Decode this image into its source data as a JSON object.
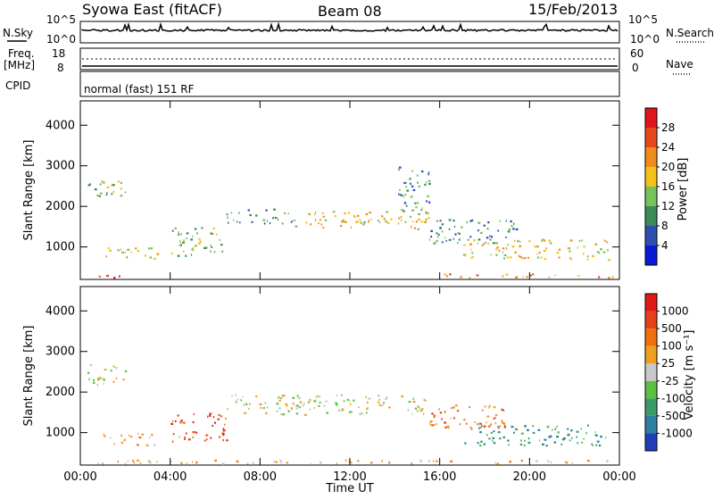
{
  "header": {
    "station": "Syowa East (fitACF)",
    "beam": "Beam 08",
    "date": "15/Feb/2013"
  },
  "top_panels": {
    "nsky_label": "N.Sky",
    "nsky_ticks": [
      "10^5",
      "10^0"
    ],
    "nsearch_label": "N.Search",
    "nsearch_ticks": [
      "10^5",
      "10^0"
    ],
    "freq_label_1": "Freq.",
    "freq_label_2": "[MHz]",
    "freq_ticks": [
      "18",
      "8"
    ],
    "nave_label": "Nave",
    "nave_ticks": [
      "60",
      "0"
    ],
    "cpid_label": "CPID",
    "cpid_text": "normal (fast) 151 RF"
  },
  "chart_data": [
    {
      "type": "heatmap",
      "ylabel": "Slant Range [km]",
      "xlabel": "",
      "y_ticks": [
        1000,
        2000,
        3000,
        4000
      ],
      "ylim": [
        200,
        4600
      ],
      "x_ticks": [
        0,
        4,
        8,
        12,
        16,
        20,
        24
      ],
      "xlim": [
        0,
        24
      ],
      "colorbar": {
        "label": "Power [dB]",
        "ticks": [
          "4",
          "8",
          "12",
          "16",
          "20",
          "24",
          "28"
        ],
        "colors": [
          "#0a1bd8",
          "#2f4fb0",
          "#3a8a5a",
          "#78c25a",
          "#f2c21a",
          "#f08c1a",
          "#e8471a",
          "#e0151a"
        ]
      },
      "regions": [
        {
          "t0": 0.2,
          "t1": 1.8,
          "r0": 250,
          "r1": 350,
          "level": 7
        },
        {
          "t0": 1.0,
          "t1": 3.5,
          "r0": 700,
          "r1": 1000,
          "level": 4
        },
        {
          "t0": 0.3,
          "t1": 2.0,
          "r0": 2200,
          "r1": 2700,
          "level": 3
        },
        {
          "t0": 4.0,
          "t1": 6.5,
          "r0": 800,
          "r1": 1500,
          "level": 3
        },
        {
          "t0": 6.5,
          "t1": 9.5,
          "r0": 1600,
          "r1": 1950,
          "level": 2
        },
        {
          "t0": 9.5,
          "t1": 15.5,
          "r0": 1450,
          "r1": 1900,
          "level": 4
        },
        {
          "t0": 14.0,
          "t1": 15.5,
          "r0": 1900,
          "r1": 3000,
          "level": 2
        },
        {
          "t0": 15.5,
          "t1": 19.5,
          "r0": 1100,
          "r1": 1700,
          "level": 2
        },
        {
          "t0": 17.0,
          "t1": 23.5,
          "r0": 700,
          "r1": 1200,
          "level": 4
        },
        {
          "t0": 16.0,
          "t1": 23.8,
          "r0": 250,
          "r1": 350,
          "level": 5
        }
      ]
    },
    {
      "type": "heatmap",
      "ylabel": "Slant Range [km]",
      "xlabel": "Time UT",
      "y_ticks": [
        1000,
        2000,
        3000,
        4000
      ],
      "ylim": [
        200,
        4600
      ],
      "x_ticks": [
        0,
        4,
        8,
        12,
        16,
        20,
        24
      ],
      "x_tick_labels": [
        "00:00",
        "04:00",
        "08:00",
        "12:00",
        "16:00",
        "20:00",
        "00:00"
      ],
      "xlim": [
        0,
        24
      ],
      "colorbar": {
        "label": "Velocity [m s⁻¹]",
        "ticks": [
          "1000",
          "500",
          "100",
          "25",
          "-25",
          "-100",
          "-500",
          "-1000"
        ],
        "colors": [
          "#1f3fb8",
          "#2f7fa0",
          "#3a9a6a",
          "#5ac040",
          "#c8c8c8",
          "#f0a020",
          "#f07010",
          "#e84018",
          "#e01818"
        ]
      },
      "regions": [
        {
          "t0": 0.3,
          "t1": 2.0,
          "r0": 2200,
          "r1": 2700,
          "level": 4
        },
        {
          "t0": 1.0,
          "t1": 3.5,
          "r0": 700,
          "r1": 1000,
          "level": 5
        },
        {
          "t0": 4.0,
          "t1": 6.5,
          "r0": 800,
          "r1": 1500,
          "level": 7
        },
        {
          "t0": 6.5,
          "t1": 15.5,
          "r0": 1450,
          "r1": 1950,
          "level": 4
        },
        {
          "t0": 15.5,
          "t1": 19.0,
          "r0": 1100,
          "r1": 1700,
          "level": 6
        },
        {
          "t0": 17.0,
          "t1": 23.5,
          "r0": 700,
          "r1": 1200,
          "level": 2
        },
        {
          "t0": 0.2,
          "t1": 23.8,
          "r0": 250,
          "r1": 350,
          "level": 5
        }
      ]
    }
  ]
}
